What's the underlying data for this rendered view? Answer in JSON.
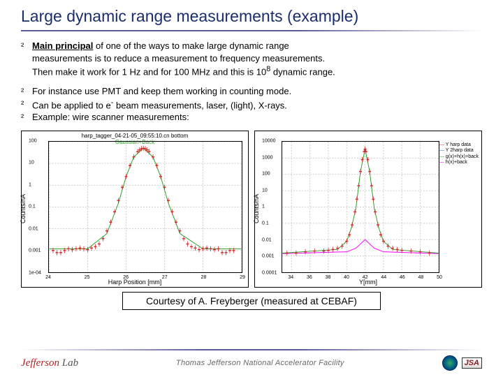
{
  "title": "Large dynamic range measurements (example)",
  "bullets": {
    "b1": {
      "sym": "²",
      "l1_pre": "Main principal",
      "l1_rest": " of one of the ways to make large dynamic range",
      "l2": "measurements is to reduce a measurement to frequency measurements.",
      "l3_pre": "Then make it work for 1 Hz and for 100 MHz and this is 10",
      "l3_sup": "8",
      "l3_post": " dynamic range."
    },
    "b2": {
      "sym": "²",
      "txt": "For instance use PMT and keep them working in counting mode."
    },
    "b3": {
      "sym": "²",
      "pre": "Can be applied to e",
      "sup": "-",
      "post": " beam measurements, laser, (light), X-rays."
    },
    "b4": {
      "sym": "²",
      "txt": "Example: wire scanner measurements:"
    }
  },
  "chart1": {
    "type": "scatter-log",
    "title": "harp_tagger_04-21-05_09:55:10.cn bottom",
    "fit_label": "Gaussian+Back",
    "xlabel": "Harp Position [mm]",
    "ylabel": "Counts/nA",
    "xlim": [
      24,
      29
    ],
    "ylim_log10": [
      -4,
      2
    ],
    "xticks": [
      24,
      25,
      26,
      27,
      28,
      29
    ],
    "yticks_log10": [
      -4,
      -3,
      -2,
      -1,
      0,
      1,
      2
    ],
    "ytick_labels": [
      "1e-04",
      "0.001",
      "0.01",
      "0.1",
      "1",
      "10",
      "100"
    ],
    "colors": {
      "data": "#d62728",
      "fit": "#2ca02c",
      "grid": "#cccccc",
      "axis": "#000000",
      "bg": "#ffffff"
    },
    "data_points": [
      [
        24.1,
        0.001
      ],
      [
        24.2,
        0.0008
      ],
      [
        24.3,
        0.0008
      ],
      [
        24.4,
        0.001
      ],
      [
        24.5,
        0.0012
      ],
      [
        24.6,
        0.0011
      ],
      [
        24.7,
        0.0012
      ],
      [
        24.8,
        0.0013
      ],
      [
        24.9,
        0.0012
      ],
      [
        25.0,
        0.0011
      ],
      [
        25.1,
        0.0013
      ],
      [
        25.2,
        0.0015
      ],
      [
        25.3,
        0.002
      ],
      [
        25.4,
        0.0035
      ],
      [
        25.5,
        0.008
      ],
      [
        25.6,
        0.02
      ],
      [
        25.7,
        0.06
      ],
      [
        25.8,
        0.2
      ],
      [
        25.9,
        0.8
      ],
      [
        26.0,
        2.5
      ],
      [
        26.1,
        8.0
      ],
      [
        26.2,
        20
      ],
      [
        26.3,
        35
      ],
      [
        26.35,
        42
      ],
      [
        26.4,
        48
      ],
      [
        26.45,
        50
      ],
      [
        26.5,
        48
      ],
      [
        26.55,
        42
      ],
      [
        26.6,
        35
      ],
      [
        26.7,
        20
      ],
      [
        26.8,
        8.0
      ],
      [
        26.9,
        2.5
      ],
      [
        27.0,
        0.8
      ],
      [
        27.1,
        0.2
      ],
      [
        27.2,
        0.06
      ],
      [
        27.3,
        0.02
      ],
      [
        27.4,
        0.008
      ],
      [
        27.5,
        0.0035
      ],
      [
        27.6,
        0.002
      ],
      [
        27.7,
        0.0015
      ],
      [
        27.8,
        0.0013
      ],
      [
        27.9,
        0.0011
      ],
      [
        28.0,
        0.0012
      ],
      [
        28.1,
        0.0013
      ],
      [
        28.2,
        0.0012
      ],
      [
        28.3,
        0.0011
      ],
      [
        28.4,
        0.0012
      ],
      [
        28.5,
        0.0008
      ],
      [
        28.6,
        0.0008
      ],
      [
        28.7,
        0.001
      ],
      [
        28.8,
        0.001
      ]
    ],
    "fit_points": [
      [
        24.0,
        0.0012
      ],
      [
        25.0,
        0.0012
      ],
      [
        25.5,
        0.006
      ],
      [
        25.8,
        0.15
      ],
      [
        26.0,
        2.5
      ],
      [
        26.2,
        20
      ],
      [
        26.45,
        50
      ],
      [
        26.7,
        20
      ],
      [
        26.9,
        2.5
      ],
      [
        27.1,
        0.15
      ],
      [
        27.4,
        0.006
      ],
      [
        28.0,
        0.0012
      ],
      [
        29.0,
        0.0012
      ]
    ],
    "marker_size": 2,
    "line_width": 1
  },
  "chart2": {
    "type": "scatter-log",
    "xlabel": "Y[mm]",
    "ylabel": "Counts/nA",
    "xlim": [
      33,
      50
    ],
    "ylim_log10": [
      -4,
      4
    ],
    "xticks": [
      34,
      36,
      38,
      40,
      42,
      44,
      46,
      48,
      50
    ],
    "yticks_log10": [
      -4,
      -3,
      -2,
      -1,
      0,
      1,
      2,
      3,
      4
    ],
    "ytick_labels": [
      "0.0001",
      "0.001",
      "0.01",
      "0.1",
      "1",
      "10",
      "100",
      "1000",
      "10000"
    ],
    "legend": [
      {
        "label": "Y harp data",
        "color": "#d62728"
      },
      {
        "label": "Y 2harp data",
        "color": "#1f77b4"
      },
      {
        "label": "g(x)+h(x)+back",
        "color": "#2ca02c"
      },
      {
        "label": "h(x)+back",
        "color": "#ff00ff"
      }
    ],
    "colors": {
      "data1": "#d62728",
      "data2": "#1f77b4",
      "fit1": "#2ca02c",
      "fit2": "#ff00ff",
      "grid": "#cccccc",
      "axis": "#000000",
      "bg": "#ffffff"
    },
    "data1_points": [
      [
        33.5,
        0.0015
      ],
      [
        34.5,
        0.0015
      ],
      [
        35.5,
        0.0018
      ],
      [
        36.5,
        0.002
      ],
      [
        37.5,
        0.002
      ],
      [
        38.0,
        0.0022
      ],
      [
        38.5,
        0.0025
      ],
      [
        39.0,
        0.003
      ],
      [
        39.5,
        0.004
      ],
      [
        40.0,
        0.008
      ],
      [
        40.3,
        0.02
      ],
      [
        40.6,
        0.08
      ],
      [
        40.9,
        0.5
      ],
      [
        41.1,
        3.0
      ],
      [
        41.3,
        20
      ],
      [
        41.5,
        150
      ],
      [
        41.7,
        800
      ],
      [
        41.9,
        2500
      ],
      [
        42.0,
        3500
      ],
      [
        42.1,
        2500
      ],
      [
        42.3,
        800
      ],
      [
        42.5,
        150
      ],
      [
        42.7,
        20
      ],
      [
        42.9,
        3.0
      ],
      [
        43.1,
        0.5
      ],
      [
        43.4,
        0.08
      ],
      [
        43.7,
        0.02
      ],
      [
        44.0,
        0.008
      ],
      [
        44.5,
        0.004
      ],
      [
        45.0,
        0.003
      ],
      [
        45.5,
        0.0025
      ],
      [
        46.0,
        0.0022
      ],
      [
        47.0,
        0.002
      ],
      [
        48.0,
        0.0018
      ],
      [
        49.0,
        0.0015
      ]
    ],
    "fit1_points": [
      [
        33,
        0.0015
      ],
      [
        39,
        0.0025
      ],
      [
        40,
        0.008
      ],
      [
        40.5,
        0.05
      ],
      [
        41,
        0.8
      ],
      [
        41.5,
        150
      ],
      [
        42,
        3500
      ],
      [
        42.5,
        150
      ],
      [
        43,
        0.8
      ],
      [
        43.5,
        0.05
      ],
      [
        44,
        0.008
      ],
      [
        45,
        0.0025
      ],
      [
        50,
        0.0015
      ]
    ],
    "fit2_points": [
      [
        33,
        0.0014
      ],
      [
        40,
        0.0018
      ],
      [
        41,
        0.003
      ],
      [
        42,
        0.01
      ],
      [
        43,
        0.003
      ],
      [
        44,
        0.0018
      ],
      [
        50,
        0.0014
      ]
    ],
    "marker_size": 2,
    "line_width": 1
  },
  "courtesy": "Courtesy of A. Freyberger (measured at CEBAF)",
  "footer": {
    "left_a": "Jefferson",
    "left_b": "Lab",
    "center": "Thomas Jefferson National Accelerator Facility",
    "jsa": "JSA"
  }
}
